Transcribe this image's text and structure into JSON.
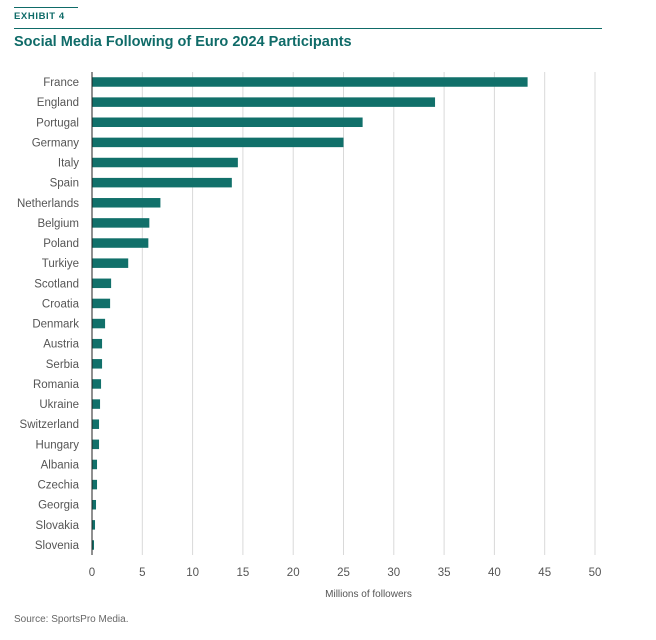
{
  "exhibit": "EXHIBIT 4",
  "source": "Source: SportsPro Media.",
  "colors": {
    "accent": "#0f6b68",
    "bar": "#11706a",
    "grid": "#d9d9d9"
  },
  "chart_data": {
    "type": "bar",
    "orientation": "horizontal",
    "title": "Social Media Following of Euro 2024 Participants",
    "xlabel": "Millions of followers",
    "ylabel": "",
    "xlim": [
      0,
      50
    ],
    "xticks": [
      0,
      5,
      10,
      15,
      20,
      25,
      30,
      35,
      40,
      45,
      50
    ],
    "grid": true,
    "categories": [
      "France",
      "England",
      "Portugal",
      "Germany",
      "Italy",
      "Spain",
      "Netherlands",
      "Belgium",
      "Poland",
      "Turkiye",
      "Scotland",
      "Croatia",
      "Denmark",
      "Austria",
      "Serbia",
      "Romania",
      "Ukraine",
      "Switzerland",
      "Hungary",
      "Albania",
      "Czechia",
      "Georgia",
      "Slovakia",
      "Slovenia"
    ],
    "values": [
      43.3,
      34.1,
      26.9,
      25.0,
      14.5,
      13.9,
      6.8,
      5.7,
      5.6,
      3.6,
      1.9,
      1.8,
      1.3,
      1.0,
      1.0,
      0.9,
      0.8,
      0.7,
      0.7,
      0.5,
      0.5,
      0.4,
      0.3,
      0.2
    ]
  }
}
